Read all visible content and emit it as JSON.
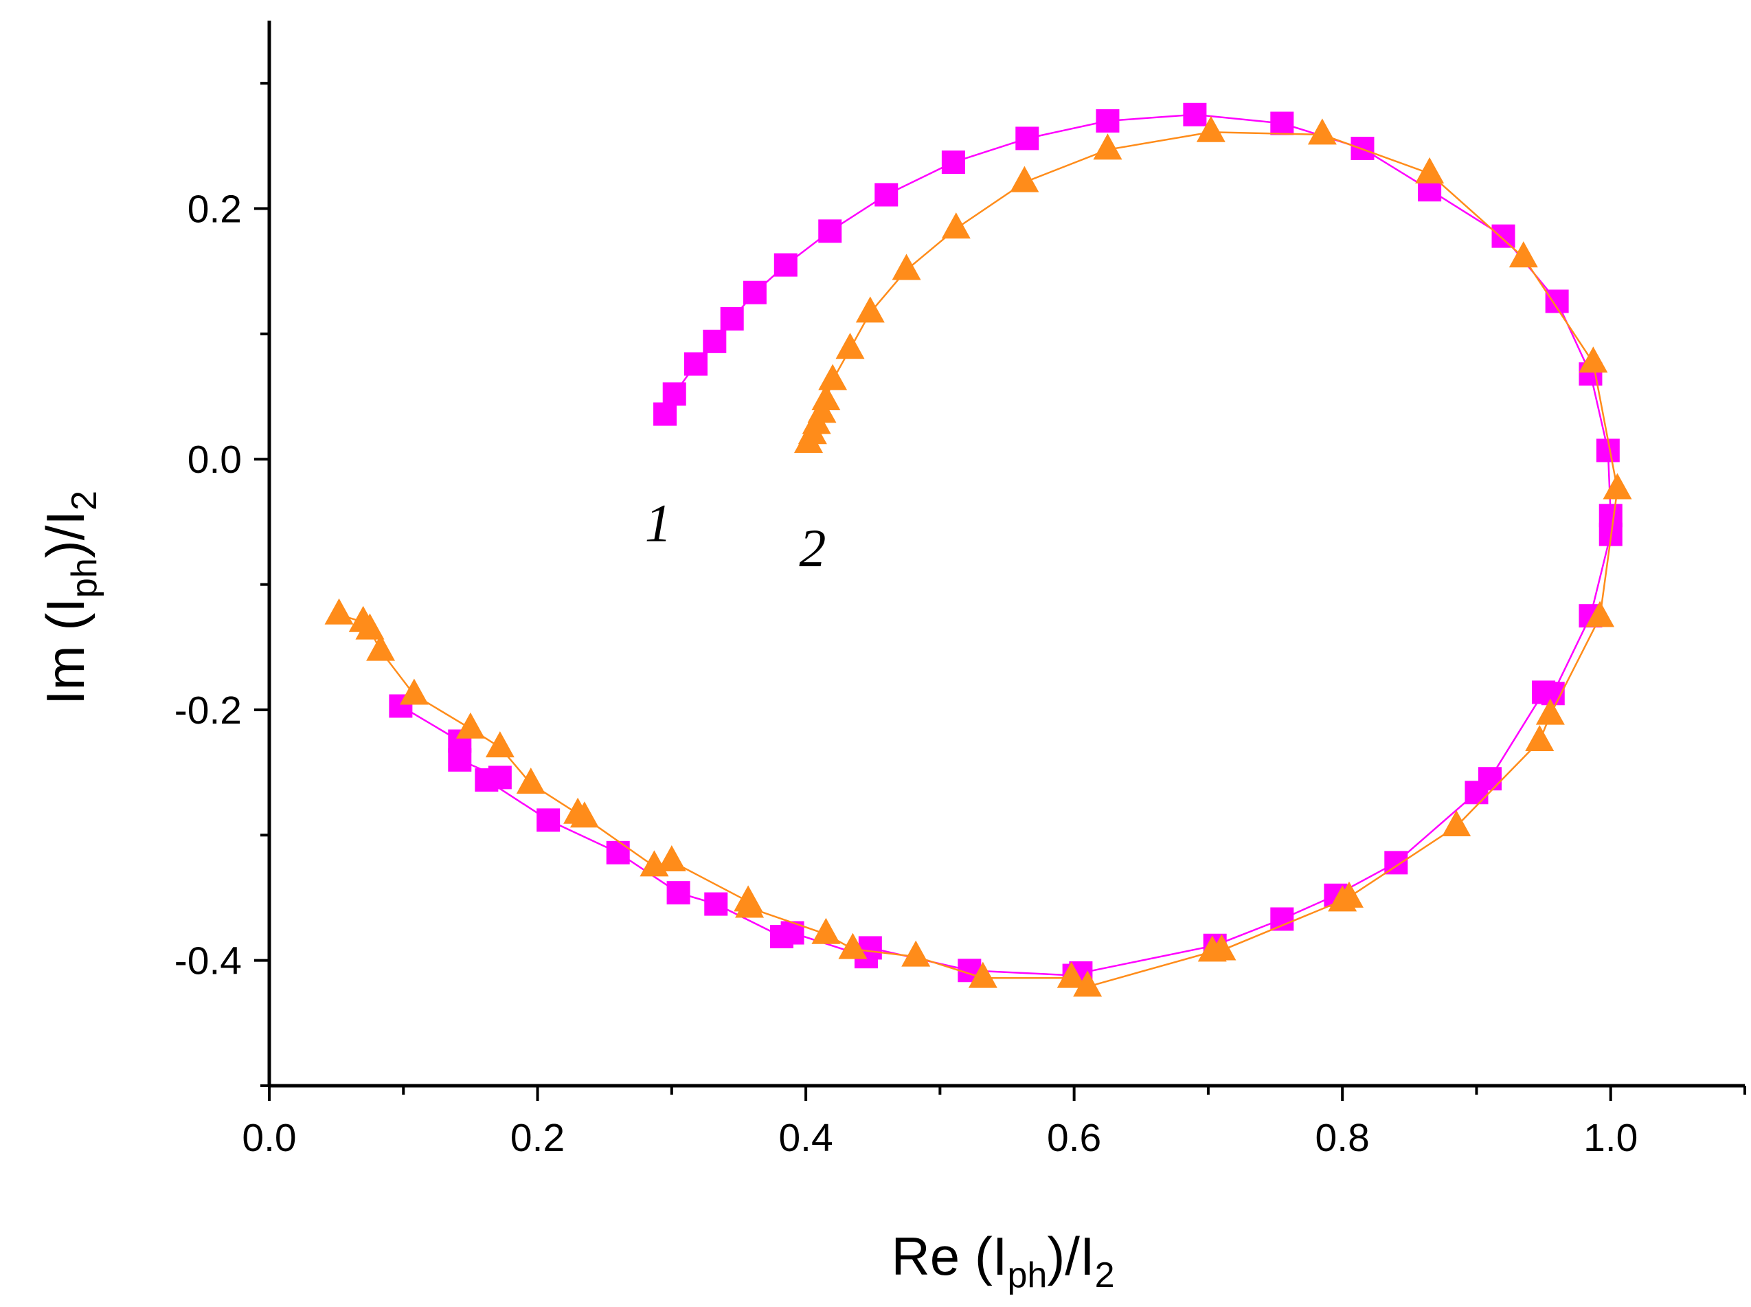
{
  "chart_data": {
    "type": "scatter",
    "xlabel": {
      "base": "Re (I",
      "sub1": "ph",
      "mid": ")/I",
      "sub2": "2"
    },
    "ylabel": {
      "base": "Im (I",
      "sub1": "ph",
      "mid": ")/I",
      "sub2": "2"
    },
    "xlim": [
      0.0,
      1.1
    ],
    "ylim": [
      -0.5,
      0.35
    ],
    "xticks": [
      0.0,
      0.2,
      0.4,
      0.6,
      0.8,
      1.0
    ],
    "xtick_labels": [
      "0.0",
      "0.2",
      "0.4",
      "0.6",
      "0.8",
      "1.0"
    ],
    "yticks": [
      -0.4,
      -0.2,
      0.0,
      0.2
    ],
    "ytick_labels": [
      "-0.4",
      "-0.2",
      "0.0",
      "0.2"
    ],
    "grid": false,
    "legend": "none",
    "series": [
      {
        "label": "1",
        "marker": "square",
        "color": "#ff00ff",
        "label_at": [
          0.29,
          -0.05
        ],
        "points": [
          [
            0.295,
            0.036
          ],
          [
            0.302,
            0.052
          ],
          [
            0.318,
            0.076
          ],
          [
            0.332,
            0.094
          ],
          [
            0.345,
            0.112
          ],
          [
            0.362,
            0.133
          ],
          [
            0.385,
            0.155
          ],
          [
            0.418,
            0.182
          ],
          [
            0.46,
            0.211
          ],
          [
            0.51,
            0.237
          ],
          [
            0.565,
            0.256
          ],
          [
            0.625,
            0.27
          ],
          [
            0.69,
            0.275
          ],
          [
            0.755,
            0.268
          ],
          [
            0.815,
            0.248
          ],
          [
            0.865,
            0.215
          ],
          [
            0.92,
            0.178
          ],
          [
            0.96,
            0.126
          ],
          [
            0.985,
            0.068
          ],
          [
            0.998,
            0.007
          ],
          [
            1.0,
            -0.045
          ],
          [
            1.0,
            -0.06
          ],
          [
            0.985,
            -0.125
          ],
          [
            0.957,
            -0.187
          ],
          [
            0.95,
            -0.186
          ],
          [
            0.91,
            -0.255
          ],
          [
            0.9,
            -0.266
          ],
          [
            0.84,
            -0.322
          ],
          [
            0.795,
            -0.348
          ],
          [
            0.755,
            -0.367
          ],
          [
            0.705,
            -0.388
          ],
          [
            0.605,
            -0.41
          ],
          [
            0.6,
            -0.412
          ],
          [
            0.522,
            -0.408
          ],
          [
            0.448,
            -0.39
          ],
          [
            0.445,
            -0.397
          ],
          [
            0.39,
            -0.378
          ],
          [
            0.382,
            -0.381
          ],
          [
            0.333,
            -0.355
          ],
          [
            0.305,
            -0.346
          ],
          [
            0.26,
            -0.314
          ],
          [
            0.208,
            -0.288
          ],
          [
            0.162,
            -0.256
          ],
          [
            0.172,
            -0.254
          ],
          [
            0.142,
            -0.24
          ],
          [
            0.142,
            -0.225
          ],
          [
            0.098,
            -0.197
          ]
        ]
      },
      {
        "label": "2",
        "marker": "triangle",
        "color": "#ff8c1a",
        "label_at": [
          0.405,
          -0.07
        ],
        "points": [
          [
            0.402,
            0.013
          ],
          [
            0.405,
            0.02
          ],
          [
            0.408,
            0.028
          ],
          [
            0.412,
            0.037
          ],
          [
            0.415,
            0.047
          ],
          [
            0.42,
            0.063
          ],
          [
            0.433,
            0.088
          ],
          [
            0.448,
            0.117
          ],
          [
            0.475,
            0.151
          ],
          [
            0.512,
            0.184
          ],
          [
            0.563,
            0.221
          ],
          [
            0.625,
            0.247
          ],
          [
            0.702,
            0.261
          ],
          [
            0.785,
            0.259
          ],
          [
            0.865,
            0.228
          ],
          [
            0.935,
            0.161
          ],
          [
            0.987,
            0.077
          ],
          [
            1.005,
            -0.024
          ],
          [
            0.992,
            -0.126
          ],
          [
            0.955,
            -0.204
          ],
          [
            0.947,
            -0.225
          ],
          [
            0.885,
            -0.293
          ],
          [
            0.8,
            -0.353
          ],
          [
            0.805,
            -0.35
          ],
          [
            0.71,
            -0.392
          ],
          [
            0.703,
            -0.393
          ],
          [
            0.61,
            -0.421
          ],
          [
            0.598,
            -0.414
          ],
          [
            0.532,
            -0.414
          ],
          [
            0.482,
            -0.397
          ],
          [
            0.435,
            -0.391
          ],
          [
            0.415,
            -0.379
          ],
          [
            0.358,
            -0.358
          ],
          [
            0.357,
            -0.353
          ],
          [
            0.3,
            -0.321
          ],
          [
            0.287,
            -0.325
          ],
          [
            0.235,
            -0.286
          ],
          [
            0.23,
            -0.283
          ],
          [
            0.195,
            -0.259
          ],
          [
            0.172,
            -0.23
          ],
          [
            0.15,
            -0.215
          ],
          [
            0.108,
            -0.188
          ],
          [
            0.083,
            -0.153
          ],
          [
            0.075,
            -0.136
          ],
          [
            0.07,
            -0.13
          ],
          [
            0.052,
            -0.124
          ]
        ]
      }
    ]
  }
}
